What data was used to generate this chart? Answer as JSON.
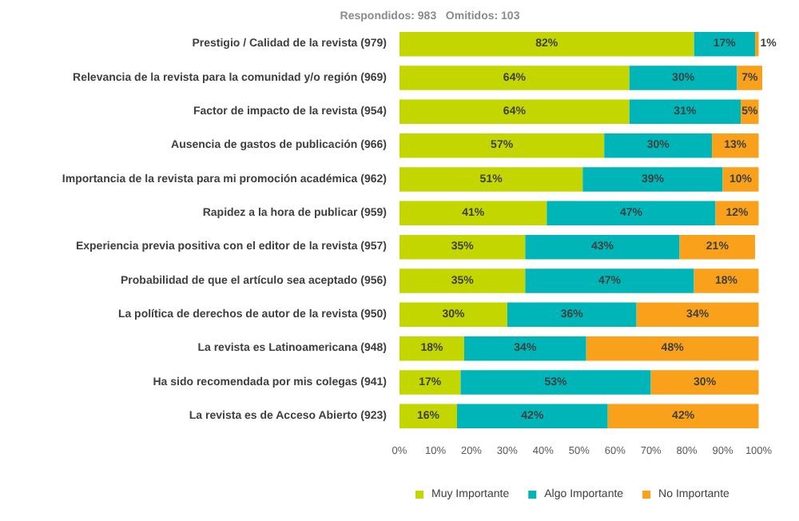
{
  "chart_data": {
    "type": "bar",
    "orientation": "horizontal",
    "stacked": true,
    "subtitle": "Respondidos: 983   Omitidos: 103",
    "categories": [
      "Prestigio / Calidad de la revista (979)",
      "Relevancia de la revista para la comunidad y/o región (969)",
      "Factor de impacto de la revista (954)",
      "Ausencia de gastos de publicación (966)",
      "Importancia de la revista para mi promoción académica (962)",
      "Rapidez a la hora de publicar (959)",
      "Experiencia previa positiva con el editor de la revista (957)",
      "Probabilidad de que el artículo sea aceptado (956)",
      "La política de derechos de autor de la revista (950)",
      "La revista es Latinoamericana (948)",
      "Ha sido recomendada por mis colegas (941)",
      "La revista es de Acceso Abierto (923)"
    ],
    "series": [
      {
        "name": "Muy Importante",
        "color": "#c3d600",
        "values": [
          82,
          64,
          64,
          57,
          51,
          41,
          35,
          35,
          30,
          18,
          17,
          16
        ],
        "value_labels": [
          "82%",
          "64%",
          "64%",
          "57%",
          "51%",
          "41%",
          "35%",
          "35%",
          "30%",
          "18%",
          "17%",
          "16%"
        ]
      },
      {
        "name": "Algo Importante",
        "color": "#00b5b8",
        "values": [
          17,
          30,
          31,
          30,
          39,
          47,
          43,
          47,
          36,
          34,
          53,
          42
        ],
        "value_labels": [
          "17%",
          "30%",
          "31%",
          "30%",
          "39%",
          "47%",
          "43%",
          "47%",
          "36%",
          "34%",
          "53%",
          "42%"
        ]
      },
      {
        "name": "No Importante",
        "color": "#f9a11b",
        "values": [
          1,
          7,
          5,
          13,
          10,
          12,
          21,
          18,
          34,
          48,
          30,
          42
        ],
        "value_labels": [
          "1%",
          "7%",
          "5%",
          "13%",
          "10%",
          "12%",
          "21%",
          "18%",
          "34%",
          "48%",
          "30%",
          "42%"
        ]
      }
    ],
    "xlim": [
      0,
      101
    ],
    "xticks": [
      {
        "value": 0,
        "label": "0%"
      },
      {
        "value": 10,
        "label": "10%"
      },
      {
        "value": 20,
        "label": "20%"
      },
      {
        "value": 30,
        "label": "30%"
      },
      {
        "value": 40,
        "label": "40%"
      },
      {
        "value": 50,
        "label": "50%"
      },
      {
        "value": 60,
        "label": "60%"
      },
      {
        "value": 70,
        "label": "70%"
      },
      {
        "value": 80,
        "label": "80%"
      },
      {
        "value": 90,
        "label": "90%"
      },
      {
        "value": 100,
        "label": "100%"
      }
    ],
    "legend": "bottom",
    "grid": false
  }
}
